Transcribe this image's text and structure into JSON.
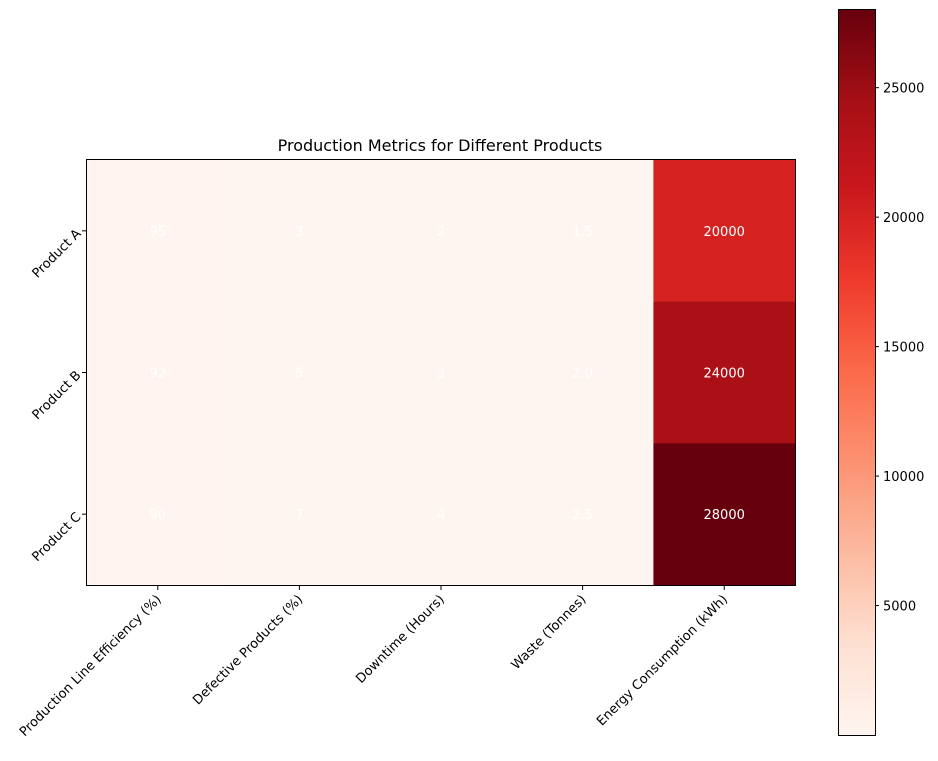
{
  "chart_data": {
    "type": "heatmap",
    "title": "Production Metrics for Different Products",
    "x_categories": [
      "Production Line Efficiency (%)",
      "Defective Products (%)",
      "Downtime (Hours)",
      "Waste (Tonnes)",
      "Energy Consumption (kWh)"
    ],
    "y_categories": [
      "Product A",
      "Product B",
      "Product C"
    ],
    "values": [
      [
        95,
        3,
        2,
        1.5,
        20000
      ],
      [
        92,
        5,
        3,
        2.0,
        24000
      ],
      [
        90,
        7,
        4,
        2.5,
        28000
      ]
    ],
    "cell_labels": [
      [
        "95",
        "3",
        "2",
        "1.5",
        "20000"
      ],
      [
        "92",
        "5",
        "3",
        "2.0",
        "24000"
      ],
      [
        "90",
        "7",
        "4",
        "2.5",
        "28000"
      ]
    ],
    "colormap": "Reds",
    "colormap_stops": [
      "#fff5f0",
      "#fee0d2",
      "#fcbba1",
      "#fc9272",
      "#fb6a4a",
      "#ef3b2c",
      "#cb181d",
      "#a50f15",
      "#67000d"
    ],
    "value_range": [
      1.5,
      28000
    ],
    "colorbar": {
      "ticks": [
        5000,
        10000,
        15000,
        20000,
        25000
      ],
      "tick_labels": [
        "5000",
        "10000",
        "15000",
        "20000",
        "25000"
      ]
    },
    "annotation_color": "#ffffff",
    "grid": false,
    "legend": "colorbar-right"
  }
}
